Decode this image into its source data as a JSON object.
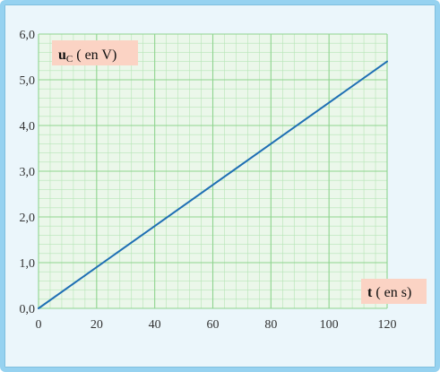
{
  "chart_data": {
    "type": "line",
    "x": [
      0,
      120
    ],
    "series": [
      {
        "values": [
          0.0,
          5.4
        ]
      }
    ],
    "xlim": [
      0,
      120
    ],
    "ylim": [
      0,
      6
    ],
    "xticks": [
      0,
      20,
      40,
      60,
      80,
      100,
      120
    ],
    "xtick_labels": [
      "0",
      "20",
      "40",
      "60",
      "80",
      "100",
      "120"
    ],
    "yticks": [
      0,
      1,
      2,
      3,
      4,
      5,
      6
    ],
    "ytick_labels": [
      "0,0",
      "1,0",
      "2,0",
      "3,0",
      "4,0",
      "5,0",
      "6,0"
    ],
    "xlabel": {
      "symbol": "t",
      "unit": " ( en s)"
    },
    "ylabel": {
      "symbol": "u",
      "subscript": "C",
      "unit": " ( en V)"
    },
    "grid": true,
    "minor_grid": {
      "x_step": 4,
      "y_step": 0.2
    },
    "colors": {
      "line": "#1f6fb4",
      "plot_background": "#ebf7ea",
      "major_grid": "#8fd48f",
      "minor_grid": "#b6e5b6",
      "label_box": "#fbd3c4",
      "frame": "#96d2f0"
    }
  }
}
